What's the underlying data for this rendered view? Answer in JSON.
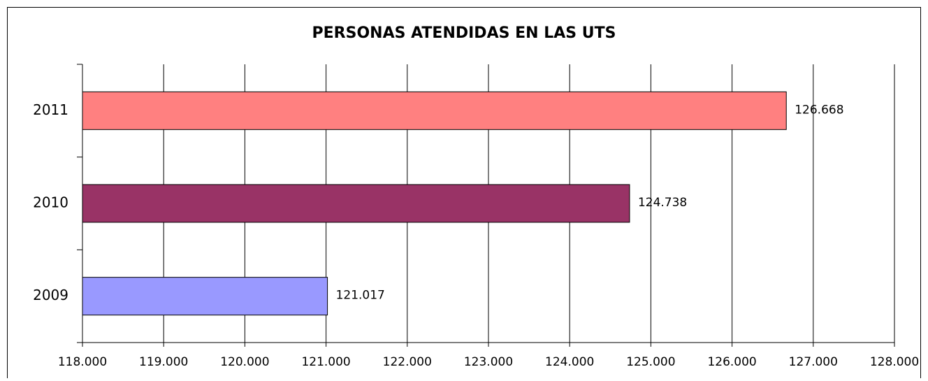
{
  "chart_data": {
    "type": "barh",
    "title": "PERSONAS ATENDIDAS EN LAS UTS",
    "categories": [
      "2009",
      "2010",
      "2011"
    ],
    "values": [
      121017,
      124738,
      126668
    ],
    "value_labels": [
      "121.017",
      "124.738",
      "126.668"
    ],
    "colors": [
      "#9999ff",
      "#993366",
      "#ff8080"
    ],
    "xlim": [
      118000,
      128000
    ],
    "xticks": [
      {
        "value": 118000,
        "label": "118.000"
      },
      {
        "value": 119000,
        "label": "119.000"
      },
      {
        "value": 120000,
        "label": "120.000"
      },
      {
        "value": 121000,
        "label": "121.000"
      },
      {
        "value": 122000,
        "label": "122.000"
      },
      {
        "value": 123000,
        "label": "123.000"
      },
      {
        "value": 124000,
        "label": "124.000"
      },
      {
        "value": 125000,
        "label": "125.000"
      },
      {
        "value": 126000,
        "label": "126.000"
      },
      {
        "value": 127000,
        "label": "127.000"
      },
      {
        "value": 128000,
        "label": "128.000"
      }
    ],
    "grid": true
  }
}
